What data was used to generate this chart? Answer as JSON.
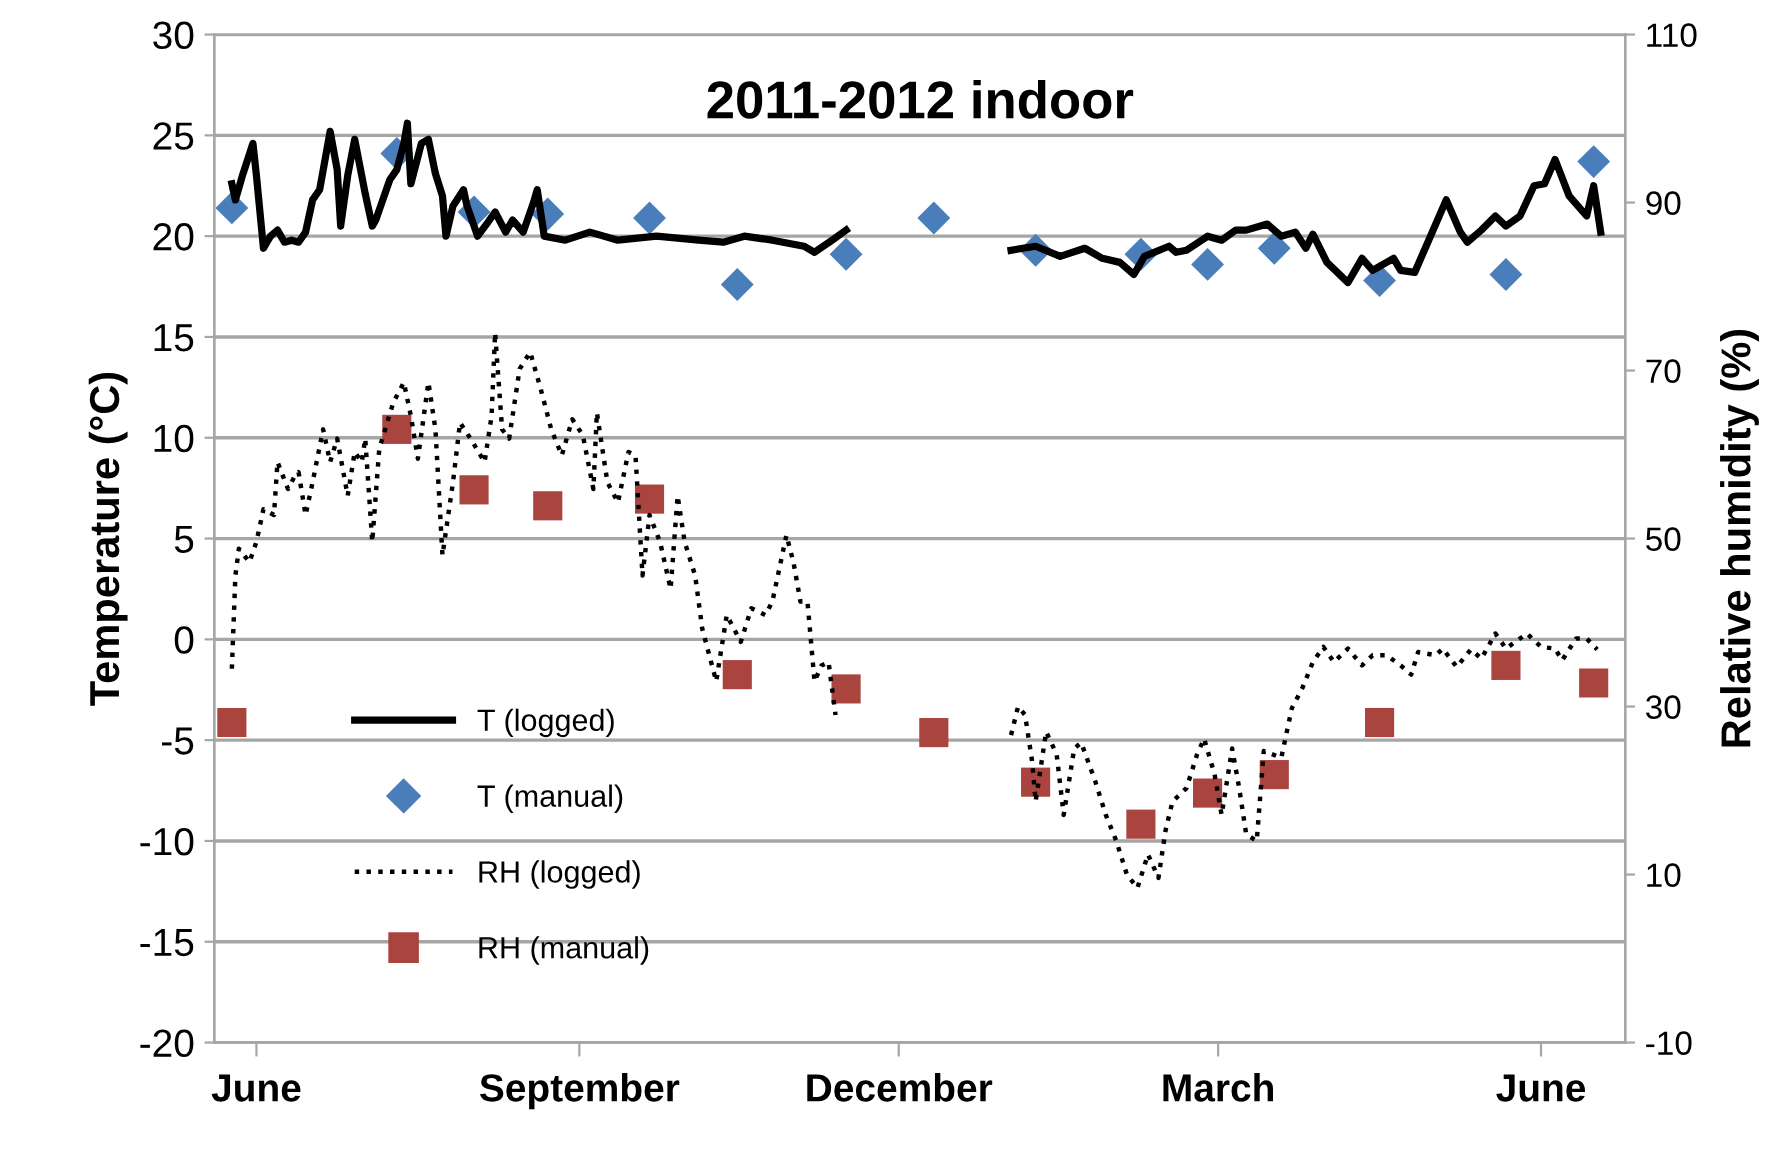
{
  "chart_data": {
    "type": "line",
    "title": "2011-2012 indoor",
    "ylabel": "Temperature (°C)",
    "y2label": "Relative humidity (%)",
    "xlim": [
      "2011-05-20",
      "2012-06-25"
    ],
    "xticks": [
      {
        "value": "2011-06-01",
        "label": "June"
      },
      {
        "value": "2011-09-01",
        "label": "September"
      },
      {
        "value": "2011-12-01",
        "label": "December"
      },
      {
        "value": "2012-03-01",
        "label": "March"
      },
      {
        "value": "2012-06-01",
        "label": "June"
      }
    ],
    "ylim": [
      -20,
      30
    ],
    "yticks": [
      -20,
      -15,
      -10,
      -5,
      0,
      5,
      10,
      15,
      20,
      25,
      30
    ],
    "y2lim": [
      -10,
      110
    ],
    "y2ticks": [
      -10,
      10,
      30,
      50,
      70,
      90,
      110
    ],
    "grid": "y",
    "legend": "left",
    "series": [
      {
        "name": "T (logged)",
        "color": "#000000",
        "line_style": "solid",
        "marker": "none",
        "x": [
          "2011-05-25",
          "2011-05-26",
          "2011-05-28",
          "2011-05-31",
          "2011-06-01",
          "2011-06-03",
          "2011-06-05",
          "2011-06-07",
          "2011-06-09",
          "2011-06-11",
          "2011-06-13",
          "2011-06-15",
          "2011-06-17",
          "2011-06-19",
          "2011-06-22",
          "2011-06-24",
          "2011-06-25",
          "2011-06-27",
          "2011-06-29",
          "2011-07-02",
          "2011-07-04",
          "2011-07-05",
          "2011-07-07",
          "2011-07-09",
          "2011-07-11",
          "2011-07-13",
          "2011-07-14",
          "2011-07-15",
          "2011-07-18",
          "2011-07-20",
          "2011-07-22",
          "2011-07-24",
          "2011-07-25",
          "2011-07-27",
          "2011-07-30",
          "2011-07-31",
          "2011-08-03",
          "2011-08-06",
          "2011-08-08",
          "2011-08-11",
          "2011-08-13",
          "2011-08-16",
          "2011-08-19",
          "2011-08-20",
          "2011-08-22",
          "2011-08-28",
          "2011-09-04",
          "2011-09-12",
          "2011-09-23",
          "2011-10-05",
          "2011-10-12",
          "2011-10-18",
          "2011-10-26",
          "2011-11-04",
          "2011-11-07",
          "2011-11-12",
          "2011-11-16",
          "2011-12-08",
          "2012-01-02",
          "2012-01-09",
          "2012-01-16",
          "2012-01-23",
          "2012-01-28",
          "2012-02-02",
          "2012-02-06",
          "2012-02-09",
          "2012-02-16",
          "2012-02-18",
          "2012-02-21",
          "2012-02-27",
          "2012-03-02",
          "2012-03-06",
          "2012-03-09",
          "2012-03-15",
          "2012-03-19",
          "2012-03-23",
          "2012-03-26",
          "2012-03-28",
          "2012-04-01",
          "2012-04-07",
          "2012-04-11",
          "2012-04-14",
          "2012-04-20",
          "2012-04-22",
          "2012-04-26",
          "2012-04-30",
          "2012-05-05",
          "2012-05-09",
          "2012-05-11",
          "2012-05-15",
          "2012-05-19",
          "2012-05-22",
          "2012-05-26",
          "2012-05-30",
          "2012-06-02",
          "2012-06-05",
          "2012-06-09",
          "2012-06-14",
          "2012-06-16",
          "2012-06-18"
        ],
        "values": [
          22.6,
          21.8,
          23.0,
          24.6,
          23.0,
          19.4,
          20.0,
          20.3,
          19.7,
          19.8,
          19.7,
          20.2,
          21.8,
          22.3,
          25.2,
          23.3,
          20.5,
          23.0,
          24.8,
          22.1,
          20.5,
          20.8,
          21.8,
          22.8,
          23.3,
          24.6,
          25.6,
          22.6,
          24.6,
          24.8,
          23.1,
          22.0,
          20.0,
          21.5,
          22.3,
          21.5,
          20.0,
          20.7,
          21.2,
          20.2,
          20.8,
          20.2,
          21.7,
          22.3,
          20.0,
          19.8,
          20.2,
          19.8,
          20.0,
          19.8,
          19.7,
          20.0,
          19.8,
          19.5,
          19.2,
          19.8,
          20.3,
          null,
          19.3,
          19.5,
          19.0,
          19.4,
          18.9,
          18.7,
          18.1,
          19.0,
          19.5,
          19.2,
          19.3,
          20.0,
          19.8,
          20.3,
          20.3,
          20.6,
          20.0,
          20.2,
          19.4,
          20.1,
          18.7,
          17.7,
          18.9,
          18.3,
          18.9,
          18.3,
          18.2,
          19.8,
          21.8,
          20.2,
          19.7,
          20.3,
          21.0,
          20.5,
          21.0,
          22.5,
          22.6,
          23.8,
          22.0,
          21.0,
          22.5,
          20.2
        ]
      },
      {
        "name": "T (manual)",
        "type": "scatter",
        "color": "#4a7ebb",
        "marker": "diamond",
        "x": [
          "2011-05-25",
          "2011-07-11",
          "2011-08-02",
          "2011-08-23",
          "2011-09-21",
          "2011-10-16",
          "2011-11-16",
          "2011-12-11",
          "2012-01-09",
          "2012-02-08",
          "2012-02-27",
          "2012-03-17",
          "2012-04-16",
          "2012-05-22",
          "2012-06-16"
        ],
        "values": [
          21.4,
          24.1,
          21.2,
          21.1,
          20.9,
          17.6,
          19.1,
          20.9,
          19.3,
          19.1,
          18.6,
          19.4,
          17.8,
          18.1,
          23.7
        ]
      },
      {
        "name": "RH (logged)",
        "axis": "y2",
        "color": "#000000",
        "line_style": "dotted",
        "marker": "none",
        "x": [
          "2011-05-25",
          "2011-05-26",
          "2011-05-27",
          "2011-05-30",
          "2011-06-01",
          "2011-06-03",
          "2011-06-06",
          "2011-06-07",
          "2011-06-10",
          "2011-06-12",
          "2011-06-13",
          "2011-06-15",
          "2011-06-17",
          "2011-06-20",
          "2011-06-22",
          "2011-06-24",
          "2011-06-27",
          "2011-06-29",
          "2011-07-01",
          "2011-07-02",
          "2011-07-04",
          "2011-07-06",
          "2011-07-10",
          "2011-07-13",
          "2011-07-15",
          "2011-07-17",
          "2011-07-20",
          "2011-07-22",
          "2011-07-24",
          "2011-07-27",
          "2011-07-29",
          "2011-08-01",
          "2011-08-05",
          "2011-08-07",
          "2011-08-08",
          "2011-08-10",
          "2011-08-12",
          "2011-08-15",
          "2011-08-18",
          "2011-08-21",
          "2011-08-24",
          "2011-08-27",
          "2011-08-30",
          "2011-09-02",
          "2011-09-05",
          "2011-09-06",
          "2011-09-09",
          "2011-09-12",
          "2011-09-15",
          "2011-09-17",
          "2011-09-19",
          "2011-09-21",
          "2011-09-24",
          "2011-09-27",
          "2011-09-29",
          "2011-10-01",
          "2011-10-04",
          "2011-10-06",
          "2011-10-10",
          "2011-10-13",
          "2011-10-15",
          "2011-10-17",
          "2011-10-20",
          "2011-10-24",
          "2011-10-26",
          "2011-10-30",
          "2011-11-01",
          "2011-11-03",
          "2011-11-05",
          "2011-11-07",
          "2011-11-09",
          "2011-11-11",
          "2011-11-13",
          "2011-12-08",
          "2012-01-02",
          "2012-01-04",
          "2012-01-06",
          "2012-01-08",
          "2012-01-09",
          "2012-01-12",
          "2012-01-15",
          "2012-01-17",
          "2012-01-20",
          "2012-01-22",
          "2012-01-26",
          "2012-01-29",
          "2012-02-01",
          "2012-02-04",
          "2012-02-07",
          "2012-02-10",
          "2012-02-13",
          "2012-02-15",
          "2012-02-17",
          "2012-02-21",
          "2012-02-24",
          "2012-02-26",
          "2012-02-29",
          "2012-03-02",
          "2012-03-05",
          "2012-03-07",
          "2012-03-09",
          "2012-03-12",
          "2012-03-14",
          "2012-03-19",
          "2012-03-22",
          "2012-03-25",
          "2012-03-28",
          "2012-03-31",
          "2012-04-03",
          "2012-04-07",
          "2012-04-11",
          "2012-04-14",
          "2012-04-18",
          "2012-04-22",
          "2012-04-25",
          "2012-04-27",
          "2012-05-02",
          "2012-05-04",
          "2012-05-08",
          "2012-05-12",
          "2012-05-15",
          "2012-05-19",
          "2012-05-22",
          "2012-05-28",
          "2012-06-01",
          "2012-06-05",
          "2012-06-07",
          "2012-06-11",
          "2012-06-14",
          "2012-06-17"
        ],
        "values": [
          34.5,
          45.6,
          48.8,
          47.2,
          49.6,
          53.5,
          52.8,
          59.1,
          55.9,
          57.5,
          57.9,
          52.8,
          56.7,
          63.0,
          59.1,
          61.9,
          55.1,
          60.3,
          59.1,
          61.9,
          49.6,
          60.7,
          66.2,
          68.6,
          64.6,
          59.5,
          68.6,
          63.0,
          48.0,
          56.7,
          63.8,
          61.9,
          59.1,
          64.6,
          74.5,
          63.0,
          61.9,
          70.2,
          72.2,
          67.8,
          63.0,
          59.9,
          64.2,
          62.3,
          55.9,
          65.0,
          56.7,
          54.3,
          60.3,
          59.9,
          45.6,
          52.8,
          49.6,
          44.0,
          55.1,
          49.6,
          45.6,
          39.3,
          33.0,
          40.9,
          39.3,
          37.7,
          41.7,
          40.9,
          42.5,
          50.4,
          47.2,
          42.5,
          42.5,
          33.0,
          34.9,
          35.3,
          29.0,
          null,
          26.6,
          30.0,
          29.0,
          23.5,
          18.7,
          27.0,
          24.3,
          17.1,
          25.0,
          25.7,
          21.1,
          17.1,
          14.0,
          10.0,
          8.4,
          12.4,
          9.6,
          15.2,
          18.7,
          20.3,
          24.3,
          26.2,
          21.9,
          17.1,
          25.0,
          20.3,
          14.8,
          14.0,
          24.7,
          23.9,
          29.8,
          32.2,
          35.3,
          37.1,
          35.3,
          36.9,
          34.9,
          36.1,
          36.1,
          34.9,
          33.8,
          36.5,
          36.1,
          36.9,
          34.7,
          36.8,
          35.7,
          38.7,
          36.9,
          38.7,
          37.1,
          36.9,
          35.5,
          38.1,
          38.1,
          36.8
        ]
      },
      {
        "name": "RH (manual)",
        "type": "scatter",
        "axis": "y2",
        "color": "#a9443f",
        "marker": "square",
        "x": [
          "2011-05-25",
          "2011-07-11",
          "2011-08-02",
          "2011-08-23",
          "2011-09-21",
          "2011-10-16",
          "2011-11-16",
          "2011-12-11",
          "2012-01-09",
          "2012-02-08",
          "2012-02-27",
          "2012-03-17",
          "2012-04-16",
          "2012-05-22",
          "2012-06-16"
        ],
        "values": [
          28.1,
          63.0,
          55.8,
          53.9,
          54.7,
          33.8,
          32.1,
          26.9,
          21.0,
          16.0,
          19.7,
          21.9,
          28.1,
          34.9,
          32.8
        ]
      }
    ]
  }
}
